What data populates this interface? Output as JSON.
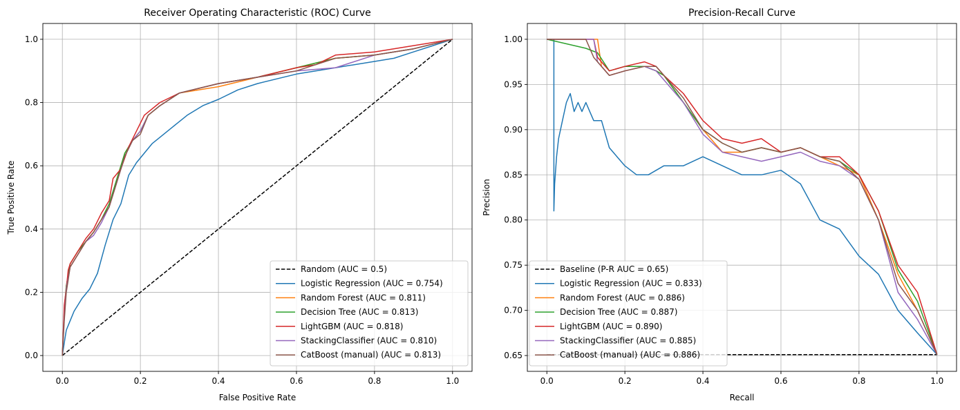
{
  "chart_data": [
    {
      "type": "line",
      "title": "Receiver Operating Characteristic (ROC) Curve",
      "xlabel": "False Positive Rate",
      "ylabel": "True Positive Rate",
      "xlim": [
        -0.05,
        1.05
      ],
      "ylim": [
        -0.05,
        1.05
      ],
      "xticks": [
        "0.0",
        "0.2",
        "0.4",
        "0.6",
        "0.8",
        "1.0"
      ],
      "xtick_values": [
        0.0,
        0.2,
        0.4,
        0.6,
        0.8,
        1.0
      ],
      "yticks": [
        "0.0",
        "0.2",
        "0.4",
        "0.6",
        "0.8",
        "1.0"
      ],
      "ytick_values": [
        0.0,
        0.2,
        0.4,
        0.6,
        0.8,
        1.0
      ],
      "grid": true,
      "legend_position": "lower right",
      "series": [
        {
          "name": "Random (AUC = 0.5)",
          "color": "#000000",
          "dashed": true,
          "x": [
            0,
            1
          ],
          "y": [
            0,
            1
          ]
        },
        {
          "name": "Logistic Regression (AUC = 0.754)",
          "color": "#1f77b4",
          "x": [
            0,
            0.005,
            0.01,
            0.02,
            0.03,
            0.05,
            0.07,
            0.09,
            0.11,
            0.13,
            0.15,
            0.17,
            0.19,
            0.21,
            0.23,
            0.25,
            0.28,
            0.32,
            0.36,
            0.4,
            0.45,
            0.5,
            0.6,
            0.7,
            0.8,
            0.85,
            0.9,
            0.95,
            1.0
          ],
          "y": [
            0,
            0.04,
            0.08,
            0.11,
            0.14,
            0.18,
            0.21,
            0.26,
            0.35,
            0.43,
            0.48,
            0.57,
            0.61,
            0.64,
            0.67,
            0.69,
            0.72,
            0.76,
            0.79,
            0.81,
            0.84,
            0.86,
            0.89,
            0.91,
            0.93,
            0.94,
            0.96,
            0.98,
            1.0
          ]
        },
        {
          "name": "Random Forest (AUC = 0.811)",
          "color": "#ff7f0e",
          "x": [
            0,
            0.005,
            0.01,
            0.02,
            0.04,
            0.06,
            0.08,
            0.1,
            0.12,
            0.14,
            0.16,
            0.18,
            0.2,
            0.22,
            0.25,
            0.3,
            0.4,
            0.5,
            0.6,
            0.7,
            0.8,
            0.9,
            1.0
          ],
          "y": [
            0,
            0.15,
            0.22,
            0.28,
            0.32,
            0.36,
            0.39,
            0.43,
            0.47,
            0.56,
            0.64,
            0.68,
            0.71,
            0.76,
            0.79,
            0.83,
            0.85,
            0.88,
            0.91,
            0.94,
            0.95,
            0.97,
            1.0
          ]
        },
        {
          "name": "Decision Tree (AUC = 0.813)",
          "color": "#2ca02c",
          "x": [
            0,
            0.005,
            0.01,
            0.02,
            0.04,
            0.06,
            0.08,
            0.1,
            0.12,
            0.14,
            0.16,
            0.18,
            0.2,
            0.22,
            0.25,
            0.3,
            0.4,
            0.5,
            0.6,
            0.7,
            0.8,
            0.9,
            1.0
          ],
          "y": [
            0,
            0.14,
            0.22,
            0.29,
            0.33,
            0.36,
            0.39,
            0.43,
            0.48,
            0.56,
            0.64,
            0.68,
            0.71,
            0.76,
            0.79,
            0.83,
            0.86,
            0.88,
            0.91,
            0.94,
            0.95,
            0.97,
            1.0
          ]
        },
        {
          "name": "LightGBM (AUC = 0.818)",
          "color": "#d62728",
          "x": [
            0,
            0.005,
            0.01,
            0.015,
            0.02,
            0.04,
            0.06,
            0.08,
            0.1,
            0.12,
            0.13,
            0.15,
            0.17,
            0.19,
            0.21,
            0.25,
            0.3,
            0.4,
            0.5,
            0.6,
            0.65,
            0.7,
            0.8,
            0.9,
            1.0
          ],
          "y": [
            0,
            0.16,
            0.21,
            0.27,
            0.29,
            0.33,
            0.37,
            0.4,
            0.45,
            0.49,
            0.56,
            0.59,
            0.66,
            0.71,
            0.76,
            0.8,
            0.83,
            0.86,
            0.88,
            0.91,
            0.92,
            0.95,
            0.96,
            0.98,
            1.0
          ]
        },
        {
          "name": "StackingClassifier (AUC = 0.810)",
          "color": "#9467bd",
          "x": [
            0,
            0.005,
            0.01,
            0.02,
            0.04,
            0.06,
            0.08,
            0.1,
            0.12,
            0.14,
            0.16,
            0.18,
            0.2,
            0.22,
            0.25,
            0.3,
            0.4,
            0.5,
            0.6,
            0.7,
            0.8,
            0.9,
            1.0
          ],
          "y": [
            0,
            0.12,
            0.21,
            0.28,
            0.32,
            0.36,
            0.38,
            0.42,
            0.47,
            0.55,
            0.63,
            0.68,
            0.71,
            0.76,
            0.79,
            0.83,
            0.86,
            0.88,
            0.9,
            0.91,
            0.95,
            0.97,
            1.0
          ]
        },
        {
          "name": "CatBoost (manual) (AUC = 0.813)",
          "color": "#8c564b",
          "x": [
            0,
            0.005,
            0.01,
            0.02,
            0.04,
            0.06,
            0.08,
            0.1,
            0.12,
            0.14,
            0.16,
            0.18,
            0.2,
            0.22,
            0.25,
            0.3,
            0.4,
            0.5,
            0.6,
            0.7,
            0.8,
            0.9,
            1.0
          ],
          "y": [
            0,
            0.11,
            0.2,
            0.28,
            0.32,
            0.36,
            0.39,
            0.43,
            0.47,
            0.55,
            0.63,
            0.68,
            0.7,
            0.76,
            0.79,
            0.83,
            0.86,
            0.88,
            0.9,
            0.94,
            0.95,
            0.97,
            1.0
          ]
        }
      ]
    },
    {
      "type": "line",
      "title": "Precision-Recall Curve",
      "xlabel": "Recall",
      "ylabel": "Precision",
      "xlim": [
        -0.05,
        1.05
      ],
      "ylim": [
        0.6325,
        1.0175
      ],
      "xticks": [
        "0.0",
        "0.2",
        "0.4",
        "0.6",
        "0.8",
        "1.0"
      ],
      "xtick_values": [
        0.0,
        0.2,
        0.4,
        0.6,
        0.8,
        1.0
      ],
      "yticks": [
        "0.65",
        "0.70",
        "0.75",
        "0.80",
        "0.85",
        "0.90",
        "0.95",
        "1.00"
      ],
      "ytick_values": [
        0.65,
        0.7,
        0.75,
        0.8,
        0.85,
        0.9,
        0.95,
        1.0
      ],
      "grid": true,
      "legend_position": "lower left",
      "series": [
        {
          "name": "Baseline (P-R AUC = 0.65)",
          "color": "#000000",
          "dashed": true,
          "x": [
            0,
            1
          ],
          "y": [
            0.651,
            0.651
          ]
        },
        {
          "name": "Logistic Regression (AUC = 0.833)",
          "color": "#1f77b4",
          "x": [
            0,
            0.018,
            0.018,
            0.02,
            0.025,
            0.03,
            0.035,
            0.04,
            0.05,
            0.06,
            0.07,
            0.08,
            0.09,
            0.1,
            0.11,
            0.12,
            0.14,
            0.16,
            0.18,
            0.2,
            0.23,
            0.26,
            0.3,
            0.35,
            0.4,
            0.45,
            0.5,
            0.55,
            0.6,
            0.65,
            0.7,
            0.75,
            0.8,
            0.85,
            0.9,
            0.95,
            1.0
          ],
          "y": [
            1.0,
            1.0,
            0.81,
            0.84,
            0.87,
            0.89,
            0.9,
            0.91,
            0.93,
            0.94,
            0.92,
            0.93,
            0.92,
            0.93,
            0.92,
            0.91,
            0.91,
            0.88,
            0.87,
            0.86,
            0.85,
            0.85,
            0.86,
            0.86,
            0.87,
            0.86,
            0.85,
            0.85,
            0.855,
            0.84,
            0.8,
            0.79,
            0.76,
            0.74,
            0.7,
            0.675,
            0.651
          ]
        },
        {
          "name": "Random Forest (AUC = 0.886)",
          "color": "#ff7f0e",
          "x": [
            0,
            0.13,
            0.14,
            0.16,
            0.2,
            0.25,
            0.28,
            0.3,
            0.35,
            0.4,
            0.45,
            0.5,
            0.55,
            0.6,
            0.65,
            0.7,
            0.75,
            0.8,
            0.85,
            0.9,
            0.95,
            1.0
          ],
          "y": [
            1.0,
            1.0,
            0.97,
            0.96,
            0.965,
            0.97,
            0.965,
            0.96,
            0.93,
            0.9,
            0.875,
            0.875,
            0.88,
            0.875,
            0.88,
            0.87,
            0.86,
            0.85,
            0.8,
            0.74,
            0.7,
            0.651
          ]
        },
        {
          "name": "Decision Tree (AUC = 0.887)",
          "color": "#2ca02c",
          "x": [
            0,
            0.1,
            0.13,
            0.16,
            0.2,
            0.25,
            0.28,
            0.3,
            0.35,
            0.4,
            0.45,
            0.5,
            0.55,
            0.6,
            0.65,
            0.7,
            0.75,
            0.8,
            0.85,
            0.9,
            0.95,
            1.0
          ],
          "y": [
            1.0,
            0.99,
            0.985,
            0.965,
            0.97,
            0.97,
            0.965,
            0.96,
            0.93,
            0.9,
            0.885,
            0.875,
            0.88,
            0.875,
            0.88,
            0.87,
            0.865,
            0.85,
            0.81,
            0.745,
            0.71,
            0.651
          ]
        },
        {
          "name": "LightGBM (AUC = 0.890)",
          "color": "#d62728",
          "x": [
            0,
            0.12,
            0.13,
            0.16,
            0.2,
            0.25,
            0.28,
            0.3,
            0.35,
            0.4,
            0.45,
            0.5,
            0.55,
            0.6,
            0.65,
            0.7,
            0.75,
            0.8,
            0.85,
            0.9,
            0.95,
            1.0
          ],
          "y": [
            1.0,
            1.0,
            0.98,
            0.965,
            0.97,
            0.975,
            0.97,
            0.96,
            0.94,
            0.91,
            0.89,
            0.885,
            0.89,
            0.875,
            0.88,
            0.87,
            0.87,
            0.85,
            0.81,
            0.75,
            0.72,
            0.651
          ]
        },
        {
          "name": "StackingClassifier (AUC = 0.885)",
          "color": "#9467bd",
          "x": [
            0,
            0.12,
            0.13,
            0.16,
            0.2,
            0.25,
            0.28,
            0.3,
            0.35,
            0.4,
            0.45,
            0.5,
            0.55,
            0.6,
            0.65,
            0.7,
            0.75,
            0.8,
            0.85,
            0.9,
            0.95,
            1.0
          ],
          "y": [
            1.0,
            1.0,
            0.975,
            0.96,
            0.965,
            0.97,
            0.965,
            0.955,
            0.93,
            0.895,
            0.875,
            0.87,
            0.865,
            0.87,
            0.875,
            0.865,
            0.86,
            0.845,
            0.8,
            0.72,
            0.69,
            0.651
          ]
        },
        {
          "name": "CatBoost (manual) (AUC = 0.886)",
          "color": "#8c564b",
          "x": [
            0,
            0.1,
            0.12,
            0.14,
            0.16,
            0.2,
            0.25,
            0.28,
            0.3,
            0.35,
            0.4,
            0.45,
            0.5,
            0.55,
            0.6,
            0.65,
            0.7,
            0.75,
            0.8,
            0.85,
            0.9,
            0.95,
            1.0
          ],
          "y": [
            1.0,
            1.0,
            0.98,
            0.97,
            0.96,
            0.965,
            0.97,
            0.97,
            0.96,
            0.935,
            0.9,
            0.885,
            0.875,
            0.88,
            0.875,
            0.88,
            0.87,
            0.865,
            0.845,
            0.8,
            0.73,
            0.7,
            0.651
          ]
        }
      ]
    }
  ]
}
